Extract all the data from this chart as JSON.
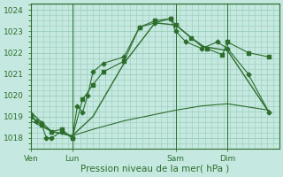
{
  "background_color": "#c5e8e0",
  "plot_bg_color": "#c5e8e0",
  "grid_color": "#98cdb8",
  "line_color": "#2d6e2d",
  "xlabel": "Pression niveau de la mer( hPa )",
  "xlabel_fontsize": 7.5,
  "ylim": [
    1017.5,
    1024.3
  ],
  "yticks": [
    1018,
    1019,
    1020,
    1021,
    1022,
    1023,
    1024
  ],
  "ytick_fontsize": 6.5,
  "xtick_labels": [
    "Ven",
    "Lun",
    "Sam",
    "Dim"
  ],
  "xtick_positions": [
    0,
    16,
    56,
    76
  ],
  "xtick_fontsize": 6.5,
  "vline_positions": [
    0,
    16,
    56,
    76
  ],
  "total_hours": 96,
  "series1_x": [
    0,
    2,
    4,
    6,
    8,
    12,
    16,
    18,
    20,
    22,
    24,
    28,
    36,
    42,
    48,
    54,
    56,
    60,
    66,
    72,
    76,
    84,
    92
  ],
  "series1_y": [
    1019.1,
    1018.8,
    1018.7,
    1018.0,
    1018.0,
    1018.3,
    1018.0,
    1019.5,
    1019.2,
    1020.0,
    1021.1,
    1021.5,
    1021.8,
    1023.2,
    1023.4,
    1023.6,
    1023.0,
    1022.5,
    1022.2,
    1022.5,
    1022.2,
    1021.0,
    1019.2
  ],
  "series1_marker": "D",
  "series1_markersize": 2.5,
  "series2_x": [
    0,
    4,
    8,
    12,
    16,
    20,
    24,
    28,
    36,
    42,
    48,
    54,
    56,
    62,
    68,
    74,
    76,
    84,
    92
  ],
  "series2_y": [
    1019.0,
    1018.6,
    1018.3,
    1018.4,
    1018.0,
    1019.8,
    1020.5,
    1021.1,
    1021.6,
    1023.2,
    1023.5,
    1023.6,
    1023.3,
    1022.7,
    1022.2,
    1021.9,
    1022.5,
    1022.0,
    1021.8
  ],
  "series2_marker": "s",
  "series2_markersize": 2.5,
  "series3_x": [
    0,
    8,
    16,
    24,
    36,
    48,
    56,
    66,
    76,
    92
  ],
  "series3_y": [
    1019.2,
    1018.3,
    1018.1,
    1019.0,
    1021.5,
    1023.4,
    1023.3,
    1022.3,
    1022.1,
    1019.2
  ],
  "series4_x": [
    0,
    8,
    16,
    24,
    36,
    48,
    56,
    66,
    76,
    92
  ],
  "series4_y": [
    1018.8,
    1018.3,
    1018.1,
    1018.4,
    1018.8,
    1019.1,
    1019.3,
    1019.5,
    1019.6,
    1019.3
  ]
}
